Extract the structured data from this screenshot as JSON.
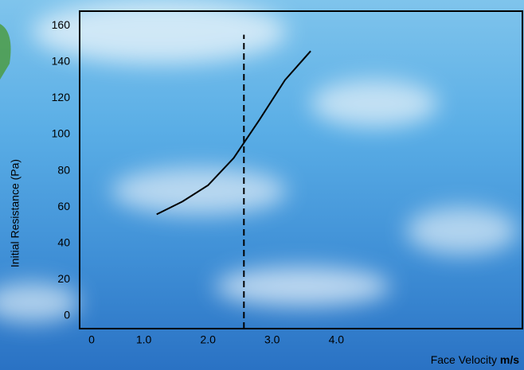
{
  "chart_data": {
    "type": "line",
    "x_label": "Face Velocity",
    "x_unit": "m/s",
    "y_label": "Initial Resistance (Pa)",
    "x": [
      1.2,
      1.6,
      2.0,
      2.4,
      2.8,
      3.2,
      3.6
    ],
    "series": [
      {
        "name": "Initial Resistance",
        "color": "#000000",
        "values": [
          56,
          63,
          72,
          87,
          108,
          130,
          146
        ]
      }
    ],
    "vline": {
      "x": 2.56,
      "ylim": [
        -7,
        155
      ],
      "color": "#000000"
    },
    "xlim": [
      0,
      6.9
    ],
    "xticks": [
      0,
      {
        "value": 1,
        "label": "1.0"
      },
      {
        "value": 2,
        "label": "2.0"
      },
      {
        "value": 3,
        "label": "3.0"
      },
      {
        "value": 4,
        "label": "4.0"
      }
    ],
    "ylim": [
      -7,
      168
    ],
    "yticks": [
      0,
      20,
      40,
      60,
      80,
      100,
      120,
      140,
      160
    ],
    "grid": false
  }
}
